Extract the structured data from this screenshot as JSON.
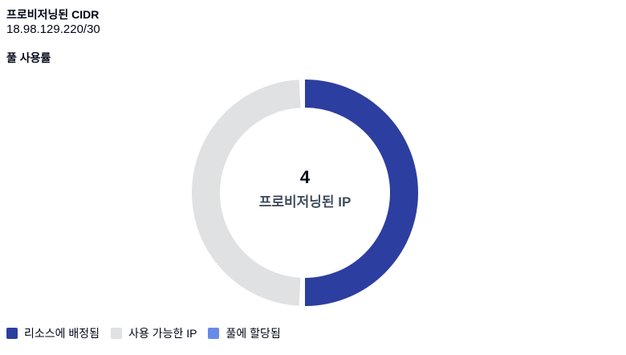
{
  "panel": {
    "provisioned_cidr_label": "프로비저닝된 CIDR",
    "provisioned_cidr_value": "18.98.129.220/30",
    "pool_usage_label": "풀 사용률"
  },
  "chart_data": {
    "type": "pie",
    "donut": true,
    "title": "풀 사용률",
    "center_value": "4",
    "center_label": "프로비저닝된 IP",
    "total": 4,
    "segments": [
      {
        "label": "리소스에 배정됨",
        "value": 2,
        "color": "#2c3e9f"
      },
      {
        "label": "사용 가능한 IP",
        "value": 2,
        "color": "#e0e1e3"
      },
      {
        "label": "풀에 할당됨",
        "value": 0,
        "color": "#688ae8"
      }
    ],
    "legend_position": "bottom-left",
    "gap_degrees": 3
  }
}
